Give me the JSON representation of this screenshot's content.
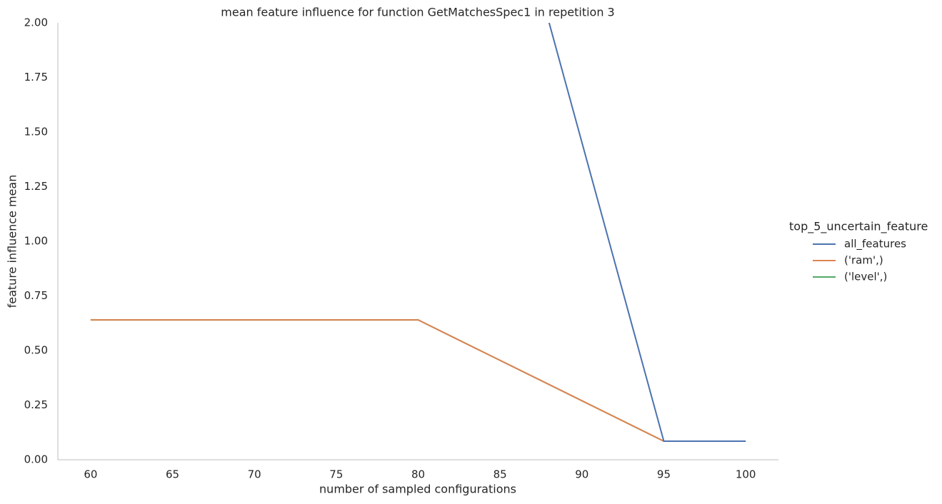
{
  "chart_data": {
    "type": "line",
    "title": "mean feature influence for function GetMatchesSpec1 in repetition 3",
    "x_label": "number of sampled configurations",
    "y_label": "feature influence mean",
    "x": [
      60,
      80,
      85,
      95,
      100
    ],
    "series": [
      {
        "name": "all_features",
        "color": "#4c72b0",
        "values": [
          null,
          null,
          2.82,
          0.085,
          0.085
        ]
      },
      {
        "name": "('ram',)",
        "color": "#dd8452",
        "values": [
          0.64,
          0.64,
          0.455,
          0.085,
          0.085
        ]
      },
      {
        "name": "('level',)",
        "color": "#55a868",
        "values": [
          0.64,
          0.64,
          0.455,
          0.085,
          0.085
        ]
      }
    ],
    "legend_title": "top_5_uncertain_feature",
    "legend_position": "right",
    "xlim": [
      58,
      102
    ],
    "ylim": [
      0,
      2
    ],
    "xticks": [
      60,
      65,
      70,
      75,
      80,
      85,
      90,
      95,
      100
    ],
    "yticks": [
      {
        "value": 0,
        "label": "0.00"
      },
      {
        "value": 0.25,
        "label": "0.25"
      },
      {
        "value": 0.5,
        "label": "0.50"
      },
      {
        "value": 0.75,
        "label": "0.75"
      },
      {
        "value": 1,
        "label": "1.00"
      },
      {
        "value": 1.25,
        "label": "1.25"
      },
      {
        "value": 1.5,
        "label": "1.50"
      },
      {
        "value": 1.75,
        "label": "1.75"
      },
      {
        "value": 2,
        "label": "2.00"
      }
    ],
    "grid": false
  }
}
